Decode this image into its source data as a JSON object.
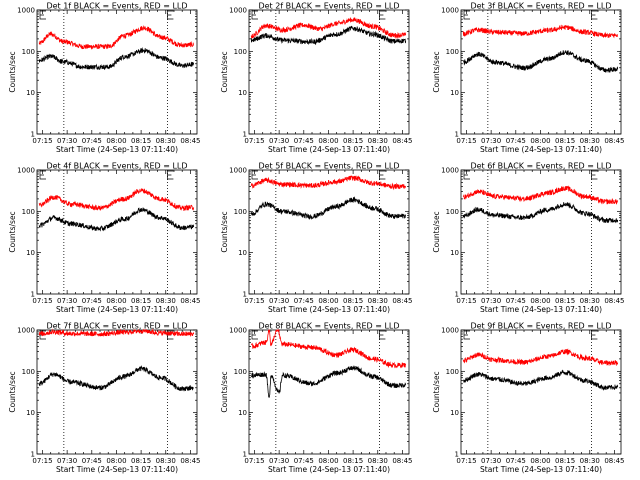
{
  "colors": {
    "events": "#000000",
    "lld": "#ff0000"
  },
  "chart_data": [
    {
      "type": "line",
      "title": "Det 1f BLACK = Events, RED = LLD",
      "xlabel": "Start Time (24-Sep-13 07:11:40)",
      "ylabel": "Counts/sec",
      "x_ticks": [
        "07:15",
        "07:30",
        "07:45",
        "08:00",
        "08:15",
        "08:30",
        "08:45"
      ],
      "y_ticks": [
        "1",
        "10",
        "100",
        "1000"
      ],
      "ylim": [
        1,
        1000
      ],
      "y_scale": "log",
      "markers": [
        "08:31"
      ],
      "markers_label": [
        "E"
      ],
      "events_levels": [
        {
          "x": "07:13",
          "y": 60
        },
        {
          "x": "07:20",
          "y": 75
        },
        {
          "x": "07:28",
          "y": 55
        },
        {
          "x": "07:40",
          "y": 42
        },
        {
          "x": "07:55",
          "y": 42
        },
        {
          "x": "08:05",
          "y": 75
        },
        {
          "x": "08:17",
          "y": 105
        },
        {
          "x": "08:27",
          "y": 70
        },
        {
          "x": "08:40",
          "y": 45
        },
        {
          "x": "08:47",
          "y": 48
        }
      ],
      "lld_levels": [
        {
          "x": "07:13",
          "y": 155
        },
        {
          "x": "07:20",
          "y": 260
        },
        {
          "x": "07:28",
          "y": 170
        },
        {
          "x": "07:40",
          "y": 130
        },
        {
          "x": "07:55",
          "y": 130
        },
        {
          "x": "08:05",
          "y": 240
        },
        {
          "x": "08:17",
          "y": 370
        },
        {
          "x": "08:27",
          "y": 220
        },
        {
          "x": "08:40",
          "y": 140
        },
        {
          "x": "08:47",
          "y": 145
        }
      ]
    },
    {
      "type": "line",
      "title": "Det 2f BLACK = Events, RED = LLD",
      "xlabel": "Start Time (24-Sep-13 07:11:40)",
      "ylabel": "Counts/sec",
      "x_ticks": [
        "07:15",
        "07:30",
        "07:45",
        "08:00",
        "08:15",
        "08:30",
        "08:45"
      ],
      "y_ticks": [
        "1",
        "10",
        "100",
        "1000"
      ],
      "ylim": [
        1,
        1000
      ],
      "y_scale": "log",
      "markers": [
        "08:31"
      ],
      "markers_label": [
        "E"
      ],
      "events_levels": [
        {
          "x": "07:13",
          "y": 185
        },
        {
          "x": "07:22",
          "y": 240
        },
        {
          "x": "07:32",
          "y": 185
        },
        {
          "x": "07:50",
          "y": 170
        },
        {
          "x": "08:05",
          "y": 260
        },
        {
          "x": "08:15",
          "y": 360
        },
        {
          "x": "08:27",
          "y": 260
        },
        {
          "x": "08:40",
          "y": 175
        },
        {
          "x": "08:47",
          "y": 180
        }
      ],
      "lld_levels": [
        {
          "x": "07:13",
          "y": 230
        },
        {
          "x": "07:22",
          "y": 420
        },
        {
          "x": "07:32",
          "y": 330
        },
        {
          "x": "07:45",
          "y": 430
        },
        {
          "x": "07:55",
          "y": 350
        },
        {
          "x": "08:05",
          "y": 470
        },
        {
          "x": "08:15",
          "y": 580
        },
        {
          "x": "08:27",
          "y": 400
        },
        {
          "x": "08:40",
          "y": 245
        },
        {
          "x": "08:47",
          "y": 250
        }
      ]
    },
    {
      "type": "line",
      "title": "Det 3f BLACK = Events, RED = LLD",
      "xlabel": "Start Time (24-Sep-13 07:11:40)",
      "ylabel": "Counts/sec",
      "x_ticks": [
        "07:15",
        "07:30",
        "07:45",
        "08:00",
        "08:15",
        "08:30",
        "08:45"
      ],
      "y_ticks": [
        "1",
        "10",
        "100",
        "1000"
      ],
      "ylim": [
        1,
        1000
      ],
      "y_scale": "log",
      "markers": [
        "08:31"
      ],
      "markers_label": [
        "E"
      ],
      "events_levels": [
        {
          "x": "07:13",
          "y": 55
        },
        {
          "x": "07:22",
          "y": 85
        },
        {
          "x": "07:32",
          "y": 55
        },
        {
          "x": "07:50",
          "y": 40
        },
        {
          "x": "08:05",
          "y": 65
        },
        {
          "x": "08:15",
          "y": 95
        },
        {
          "x": "08:27",
          "y": 60
        },
        {
          "x": "08:40",
          "y": 35
        },
        {
          "x": "08:47",
          "y": 37
        }
      ],
      "lld_levels": [
        {
          "x": "07:13",
          "y": 270
        },
        {
          "x": "07:22",
          "y": 330
        },
        {
          "x": "07:32",
          "y": 290
        },
        {
          "x": "07:50",
          "y": 270
        },
        {
          "x": "08:05",
          "y": 320
        },
        {
          "x": "08:15",
          "y": 380
        },
        {
          "x": "08:27",
          "y": 290
        },
        {
          "x": "08:40",
          "y": 240
        },
        {
          "x": "08:47",
          "y": 245
        }
      ]
    },
    {
      "type": "line",
      "title": "Det 4f BLACK = Events, RED = LLD",
      "xlabel": "Start Time (24-Sep-13 07:11:40)",
      "ylabel": "Counts/sec",
      "x_ticks": [
        "07:15",
        "07:30",
        "07:45",
        "08:00",
        "08:15",
        "08:30",
        "08:45"
      ],
      "y_ticks": [
        "1",
        "10",
        "100",
        "1000"
      ],
      "ylim": [
        1,
        1000
      ],
      "y_scale": "log",
      "markers": [
        "08:31"
      ],
      "markers_label": [
        "E"
      ],
      "events_levels": [
        {
          "x": "07:13",
          "y": 45
        },
        {
          "x": "07:22",
          "y": 70
        },
        {
          "x": "07:32",
          "y": 50
        },
        {
          "x": "07:50",
          "y": 38
        },
        {
          "x": "08:05",
          "y": 65
        },
        {
          "x": "08:15",
          "y": 110
        },
        {
          "x": "08:27",
          "y": 70
        },
        {
          "x": "08:40",
          "y": 40
        },
        {
          "x": "08:47",
          "y": 42
        }
      ],
      "lld_levels": [
        {
          "x": "07:13",
          "y": 140
        },
        {
          "x": "07:22",
          "y": 220
        },
        {
          "x": "07:32",
          "y": 150
        },
        {
          "x": "07:50",
          "y": 120
        },
        {
          "x": "08:05",
          "y": 200
        },
        {
          "x": "08:15",
          "y": 320
        },
        {
          "x": "08:27",
          "y": 200
        },
        {
          "x": "08:40",
          "y": 120
        },
        {
          "x": "08:47",
          "y": 125
        }
      ]
    },
    {
      "type": "line",
      "title": "Det 5f BLACK = Events, RED = LLD",
      "xlabel": "Start Time (24-Sep-13 07:11:40)",
      "ylabel": "Counts/sec",
      "x_ticks": [
        "07:15",
        "07:30",
        "07:45",
        "08:00",
        "08:15",
        "08:30",
        "08:45"
      ],
      "y_ticks": [
        "1",
        "10",
        "100",
        "1000"
      ],
      "ylim": [
        1,
        1000
      ],
      "y_scale": "log",
      "markers": [
        "08:31"
      ],
      "markers_label": [
        "E"
      ],
      "events_levels": [
        {
          "x": "07:13",
          "y": 85
        },
        {
          "x": "07:22",
          "y": 150
        },
        {
          "x": "07:32",
          "y": 100
        },
        {
          "x": "07:50",
          "y": 75
        },
        {
          "x": "08:05",
          "y": 130
        },
        {
          "x": "08:15",
          "y": 190
        },
        {
          "x": "08:27",
          "y": 120
        },
        {
          "x": "08:40",
          "y": 75
        },
        {
          "x": "08:47",
          "y": 78
        }
      ],
      "lld_levels": [
        {
          "x": "07:13",
          "y": 420
        },
        {
          "x": "07:22",
          "y": 560
        },
        {
          "x": "07:32",
          "y": 450
        },
        {
          "x": "07:50",
          "y": 420
        },
        {
          "x": "08:05",
          "y": 520
        },
        {
          "x": "08:15",
          "y": 640
        },
        {
          "x": "08:27",
          "y": 480
        },
        {
          "x": "08:40",
          "y": 400
        },
        {
          "x": "08:47",
          "y": 405
        }
      ]
    },
    {
      "type": "line",
      "title": "Det 6f BLACK = Events, RED = LLD",
      "xlabel": "Start Time (24-Sep-13 07:11:40)",
      "ylabel": "Counts/sec",
      "x_ticks": [
        "07:15",
        "07:30",
        "07:45",
        "08:00",
        "08:15",
        "08:30",
        "08:45"
      ],
      "y_ticks": [
        "1",
        "10",
        "100",
        "1000"
      ],
      "ylim": [
        1,
        1000
      ],
      "y_scale": "log",
      "markers": [
        "08:31"
      ],
      "markers_label": [
        "E"
      ],
      "events_levels": [
        {
          "x": "07:13",
          "y": 75
        },
        {
          "x": "07:22",
          "y": 110
        },
        {
          "x": "07:32",
          "y": 80
        },
        {
          "x": "07:50",
          "y": 70
        },
        {
          "x": "08:05",
          "y": 110
        },
        {
          "x": "08:15",
          "y": 150
        },
        {
          "x": "08:27",
          "y": 90
        },
        {
          "x": "08:40",
          "y": 60
        },
        {
          "x": "08:47",
          "y": 62
        }
      ],
      "lld_levels": [
        {
          "x": "07:13",
          "y": 220
        },
        {
          "x": "07:22",
          "y": 300
        },
        {
          "x": "07:32",
          "y": 230
        },
        {
          "x": "07:50",
          "y": 200
        },
        {
          "x": "08:05",
          "y": 280
        },
        {
          "x": "08:15",
          "y": 360
        },
        {
          "x": "08:27",
          "y": 230
        },
        {
          "x": "08:40",
          "y": 170
        },
        {
          "x": "08:47",
          "y": 172
        }
      ]
    },
    {
      "type": "line",
      "title": "Det 7f BLACK = Events, RED = LLD",
      "xlabel": "Start Time (24-Sep-13 07:11:40)",
      "ylabel": "Counts/sec",
      "x_ticks": [
        "07:15",
        "07:30",
        "07:45",
        "08:00",
        "08:15",
        "08:30",
        "08:45"
      ],
      "y_ticks": [
        "1",
        "10",
        "100",
        "1000"
      ],
      "ylim": [
        1,
        1000
      ],
      "y_scale": "log",
      "markers": [
        "08:31"
      ],
      "markers_label": [
        "E"
      ],
      "events_levels": [
        {
          "x": "07:13",
          "y": 50
        },
        {
          "x": "07:22",
          "y": 85
        },
        {
          "x": "07:32",
          "y": 55
        },
        {
          "x": "07:50",
          "y": 40
        },
        {
          "x": "08:05",
          "y": 75
        },
        {
          "x": "08:15",
          "y": 115
        },
        {
          "x": "08:27",
          "y": 70
        },
        {
          "x": "08:40",
          "y": 38
        },
        {
          "x": "08:47",
          "y": 40
        }
      ],
      "lld_levels": [
        {
          "x": "07:13",
          "y": 800
        },
        {
          "x": "07:22",
          "y": 900
        },
        {
          "x": "07:32",
          "y": 820
        },
        {
          "x": "07:50",
          "y": 800
        },
        {
          "x": "08:05",
          "y": 880
        },
        {
          "x": "08:15",
          "y": 960
        },
        {
          "x": "08:27",
          "y": 850
        },
        {
          "x": "08:40",
          "y": 800
        },
        {
          "x": "08:47",
          "y": 800
        }
      ]
    },
    {
      "type": "line",
      "title": "Det 8f BLACK = Events, RED = LLD",
      "xlabel": "Start Time (24-Sep-13 07:11:40)",
      "ylabel": "Counts/sec",
      "x_ticks": [
        "07:15",
        "07:30",
        "07:45",
        "08:00",
        "08:15",
        "08:30",
        "08:45"
      ],
      "y_ticks": [
        "1",
        "10",
        "100",
        "1000"
      ],
      "ylim": [
        1,
        1000
      ],
      "y_scale": "log",
      "markers": [
        "08:31"
      ],
      "markers_label": [
        "E"
      ],
      "events_levels": [
        {
          "x": "07:13",
          "y": 80
        },
        {
          "x": "07:22",
          "y": 85
        },
        {
          "x": "07:24",
          "y": 22
        },
        {
          "x": "07:25",
          "y": 80
        },
        {
          "x": "07:30",
          "y": 30
        },
        {
          "x": "07:32",
          "y": 80
        },
        {
          "x": "07:50",
          "y": 50
        },
        {
          "x": "08:05",
          "y": 90
        },
        {
          "x": "08:15",
          "y": 120
        },
        {
          "x": "08:27",
          "y": 75
        },
        {
          "x": "08:40",
          "y": 45
        },
        {
          "x": "08:47",
          "y": 47
        }
      ],
      "lld_levels": [
        {
          "x": "07:13",
          "y": 400
        },
        {
          "x": "07:22",
          "y": 500
        },
        {
          "x": "07:24",
          "y": 1000
        },
        {
          "x": "07:25",
          "y": 450
        },
        {
          "x": "07:29",
          "y": 1000
        },
        {
          "x": "07:32",
          "y": 450
        },
        {
          "x": "07:50",
          "y": 380
        },
        {
          "x": "08:05",
          "y": 250
        },
        {
          "x": "08:15",
          "y": 330
        },
        {
          "x": "08:27",
          "y": 200
        },
        {
          "x": "08:40",
          "y": 140
        },
        {
          "x": "08:47",
          "y": 142
        }
      ]
    },
    {
      "type": "line",
      "title": "Det 9f BLACK = Events, RED = LLD",
      "xlabel": "Start Time (24-Sep-13 07:11:40)",
      "ylabel": "Counts/sec",
      "x_ticks": [
        "07:15",
        "07:30",
        "07:45",
        "08:00",
        "08:15",
        "08:30",
        "08:45"
      ],
      "y_ticks": [
        "1",
        "10",
        "100",
        "1000"
      ],
      "ylim": [
        1,
        1000
      ],
      "y_scale": "log",
      "markers": [
        "08:31"
      ],
      "markers_label": [
        "E"
      ],
      "events_levels": [
        {
          "x": "07:13",
          "y": 60
        },
        {
          "x": "07:22",
          "y": 85
        },
        {
          "x": "07:32",
          "y": 65
        },
        {
          "x": "07:50",
          "y": 50
        },
        {
          "x": "08:05",
          "y": 70
        },
        {
          "x": "08:15",
          "y": 95
        },
        {
          "x": "08:27",
          "y": 60
        },
        {
          "x": "08:40",
          "y": 40
        },
        {
          "x": "08:47",
          "y": 42
        }
      ],
      "lld_levels": [
        {
          "x": "07:13",
          "y": 180
        },
        {
          "x": "07:22",
          "y": 250
        },
        {
          "x": "07:32",
          "y": 190
        },
        {
          "x": "07:50",
          "y": 165
        },
        {
          "x": "08:05",
          "y": 230
        },
        {
          "x": "08:15",
          "y": 300
        },
        {
          "x": "08:27",
          "y": 210
        },
        {
          "x": "08:40",
          "y": 160
        },
        {
          "x": "08:47",
          "y": 162
        }
      ]
    }
  ]
}
